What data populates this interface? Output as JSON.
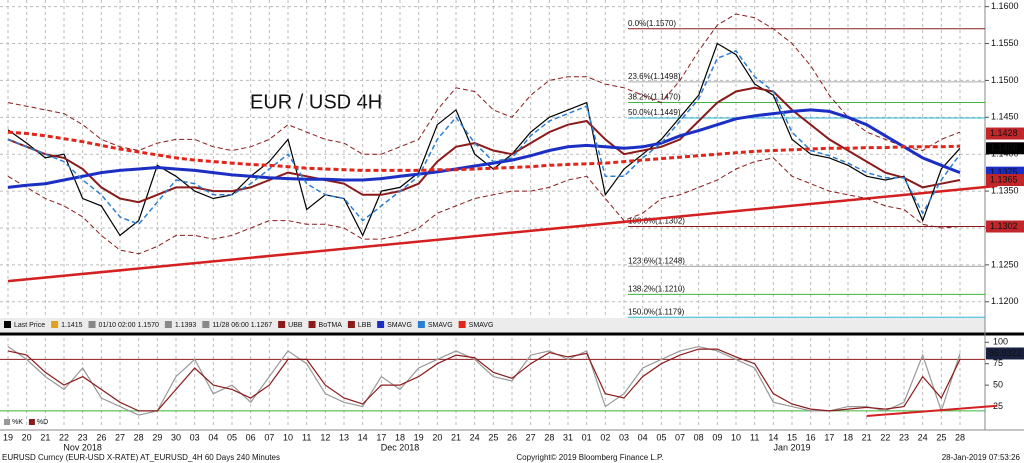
{
  "chart_data": [
    {
      "type": "line",
      "title": "EUR / USD 4H",
      "title_color": "#d42020",
      "categories": [
        "19",
        "20",
        "21",
        "22",
        "23",
        "26",
        "27",
        "28",
        "29",
        "30",
        "03",
        "04",
        "05",
        "06",
        "07",
        "10",
        "11",
        "12",
        "13",
        "14",
        "17",
        "18",
        "19",
        "20",
        "21",
        "24",
        "25",
        "26",
        "27",
        "28",
        "31",
        "01",
        "02",
        "03",
        "04",
        "05",
        "07",
        "08",
        "09",
        "10",
        "11",
        "14",
        "15",
        "16",
        "17",
        "18",
        "21",
        "22",
        "23",
        "24",
        "25",
        "28"
      ],
      "months": [
        "Nov 2018",
        "Dec 2018",
        "Jan 2019"
      ],
      "ylim": [
        1.1178,
        1.1609
      ],
      "yticks": [
        {
          "value": 1.12,
          "label": "1.1200"
        },
        {
          "value": 1.125,
          "label": "1.1250"
        },
        {
          "value": 1.13,
          "label": "1.1300"
        },
        {
          "value": 1.135,
          "label": "1.1350"
        },
        {
          "value": 1.14,
          "label": "1.1400"
        },
        {
          "value": 1.145,
          "label": "1.1450"
        },
        {
          "value": 1.15,
          "label": "1.1500"
        },
        {
          "value": 1.155,
          "label": "1.1550"
        },
        {
          "value": 1.16,
          "label": "1.1600"
        }
      ],
      "grid": true,
      "series": [
        {
          "name": "Last Price",
          "color": "#000000",
          "width": 1.2,
          "dash": false,
          "values": [
            1.1433,
            1.1415,
            1.1395,
            1.14,
            1.134,
            1.133,
            1.129,
            1.131,
            1.1385,
            1.137,
            1.135,
            1.134,
            1.1345,
            1.137,
            1.139,
            1.142,
            1.1325,
            1.1345,
            1.134,
            1.129,
            1.135,
            1.1355,
            1.1375,
            1.144,
            1.146,
            1.14,
            1.138,
            1.14,
            1.143,
            1.145,
            1.146,
            1.147,
            1.1345,
            1.138,
            1.14,
            1.142,
            1.145,
            1.148,
            1.155,
            1.1535,
            1.1495,
            1.148,
            1.142,
            1.14,
            1.1395,
            1.1385,
            1.137,
            1.1365,
            1.137,
            1.131,
            1.138,
            1.1408
          ]
        },
        {
          "name": "UBB",
          "color": "#8b1a1a",
          "width": 1,
          "dash": true,
          "values": [
            1.147,
            1.1465,
            1.146,
            1.1455,
            1.144,
            1.142,
            1.141,
            1.1405,
            1.1415,
            1.142,
            1.142,
            1.141,
            1.1405,
            1.141,
            1.142,
            1.144,
            1.143,
            1.142,
            1.1415,
            1.14,
            1.14,
            1.141,
            1.142,
            1.146,
            1.149,
            1.1485,
            1.146,
            1.145,
            1.148,
            1.15,
            1.1505,
            1.1505,
            1.1495,
            1.149,
            1.148,
            1.147,
            1.15,
            1.154,
            1.1575,
            1.159,
            1.1585,
            1.157,
            1.155,
            1.152,
            1.148,
            1.145,
            1.143,
            1.142,
            1.141,
            1.1405,
            1.142,
            1.143
          ]
        },
        {
          "name": "BoTMA",
          "color": "#8b1a1a",
          "width": 2,
          "dash": false,
          "values": [
            1.142,
            1.141,
            1.14,
            1.1395,
            1.138,
            1.1355,
            1.134,
            1.1335,
            1.1345,
            1.1355,
            1.1355,
            1.135,
            1.135,
            1.1355,
            1.1365,
            1.1375,
            1.137,
            1.1365,
            1.136,
            1.1345,
            1.1345,
            1.135,
            1.136,
            1.139,
            1.141,
            1.1415,
            1.1405,
            1.14,
            1.1415,
            1.143,
            1.144,
            1.1445,
            1.142,
            1.14,
            1.1405,
            1.141,
            1.142,
            1.1445,
            1.147,
            1.1485,
            1.149,
            1.1485,
            1.146,
            1.144,
            1.142,
            1.1405,
            1.139,
            1.1375,
            1.1368,
            1.1355,
            1.136,
            1.1365
          ]
        },
        {
          "name": "LBB",
          "color": "#8b1a1a",
          "width": 1,
          "dash": true,
          "values": [
            1.137,
            1.1355,
            1.134,
            1.133,
            1.1315,
            1.129,
            1.127,
            1.1265,
            1.1275,
            1.129,
            1.129,
            1.1285,
            1.129,
            1.13,
            1.131,
            1.131,
            1.1305,
            1.1305,
            1.13,
            1.1285,
            1.1285,
            1.129,
            1.13,
            1.132,
            1.133,
            1.134,
            1.1345,
            1.135,
            1.135,
            1.1355,
            1.1365,
            1.137,
            1.134,
            1.131,
            1.132,
            1.134,
            1.1345,
            1.1355,
            1.1365,
            1.138,
            1.139,
            1.1395,
            1.137,
            1.136,
            1.135,
            1.1345,
            1.134,
            1.133,
            1.1325,
            1.1305,
            1.13,
            1.1302
          ]
        },
        {
          "name": "SMAVG",
          "color": "#1c2fc4",
          "width": 3,
          "dash": false,
          "values": [
            1.1355,
            1.1358,
            1.136,
            1.1365,
            1.137,
            1.1375,
            1.1378,
            1.138,
            1.1382,
            1.138,
            1.1378,
            1.1375,
            1.1372,
            1.137,
            1.1368,
            1.1367,
            1.1366,
            1.1366,
            1.1365,
            1.1365,
            1.1367,
            1.137,
            1.1373,
            1.1376,
            1.138,
            1.1384,
            1.1388,
            1.1392,
            1.1398,
            1.1405,
            1.141,
            1.1412,
            1.141,
            1.1408,
            1.141,
            1.1415,
            1.1425,
            1.1432,
            1.144,
            1.1448,
            1.1452,
            1.1455,
            1.1458,
            1.146,
            1.1458,
            1.145,
            1.144,
            1.1425,
            1.141,
            1.1395,
            1.1385,
            1.1375
          ]
        },
        {
          "name": "SMAVG",
          "color": "#2a7fd4",
          "width": 1.5,
          "dash": true,
          "values": [
            1.142,
            1.141,
            1.14,
            1.139,
            1.1365,
            1.1345,
            1.1315,
            1.1305,
            1.1335,
            1.1365,
            1.136,
            1.1345,
            1.1345,
            1.136,
            1.138,
            1.14,
            1.136,
            1.1345,
            1.134,
            1.131,
            1.133,
            1.135,
            1.137,
            1.142,
            1.145,
            1.1415,
            1.139,
            1.1395,
            1.1425,
            1.1445,
            1.1455,
            1.1465,
            1.137,
            1.137,
            1.1395,
            1.1415,
            1.1445,
            1.1475,
            1.153,
            1.154,
            1.1505,
            1.1485,
            1.143,
            1.1405,
            1.1398,
            1.1388,
            1.1375,
            1.1368,
            1.1368,
            1.132,
            1.1365,
            1.14
          ]
        },
        {
          "name": "SMAVG",
          "color": "#e0261b",
          "width": 3,
          "dash": true,
          "values": [
            1.143,
            1.1428,
            1.1425,
            1.1421,
            1.1417,
            1.1412,
            1.1407,
            1.1403,
            1.1399,
            1.1395,
            1.1392,
            1.139,
            1.1388,
            1.1386,
            1.1385,
            1.1383,
            1.1381,
            1.138,
            1.1379,
            1.1378,
            1.1378,
            1.1378,
            1.1378,
            1.1379,
            1.1379,
            1.138,
            1.1381,
            1.1382,
            1.1383,
            1.1385,
            1.1386,
            1.1387,
            1.1388,
            1.139,
            1.1392,
            1.1394,
            1.1396,
            1.1398,
            1.14,
            1.1402,
            1.1404,
            1.1405,
            1.1406,
            1.1407,
            1.1408,
            1.1408,
            1.1409,
            1.1409,
            1.141,
            1.141,
            1.141,
            1.1411
          ]
        }
      ],
      "legend_info": [
        {
          "text": "1.1415",
          "color": "#e0a020"
        },
        {
          "text": "01/10 02:00 1.1570",
          "color": "#888888"
        },
        {
          "text": "1.1393",
          "color": "#888888"
        },
        {
          "text": "11/28 06:00 1.1267",
          "color": "#888888"
        }
      ],
      "fib_levels": [
        {
          "value": 1.157,
          "label": "0.0%(1.1570)",
          "color": "#8b1a1a"
        },
        {
          "value": 1.1498,
          "label": "23.6%(1.1498)",
          "color": "#aaaaaa"
        },
        {
          "value": 1.147,
          "label": "38.2%(1.1470)",
          "color": "#3fb53f"
        },
        {
          "value": 1.1449,
          "label": "50.0%(1.1449)",
          "color": "#2bb5d0"
        },
        {
          "value": 1.1302,
          "label": "100.0%(1.1302)",
          "color": "#8b1a1a"
        },
        {
          "value": 1.1248,
          "label": "123.6%(1.1248)",
          "color": "#aaaaaa"
        },
        {
          "value": 1.121,
          "label": "138.2%(1.1210)",
          "color": "#3fb53f"
        },
        {
          "value": 1.1179,
          "label": "150.0%(1.1179)",
          "color": "#2bb5d0"
        }
      ],
      "trendline": {
        "color": "#d42020",
        "from": [
          0,
          1.1228
        ],
        "to": [
          53,
          1.1357
        ]
      },
      "price_tags": [
        {
          "value": 1.1428,
          "color": "#c0262a"
        },
        {
          "value": 1.1408,
          "color": "#000000"
        },
        {
          "value": 1.1375,
          "color": "#1c2fc4"
        },
        {
          "value": 1.1365,
          "color": "#c0262a"
        },
        {
          "value": 1.1302,
          "color": "#c0262a"
        }
      ]
    },
    {
      "type": "line",
      "ylim": [
        0,
        105
      ],
      "yticks": [
        25,
        50,
        75,
        100
      ],
      "series": [
        {
          "name": "%K",
          "color": "#999999",
          "width": 1.2,
          "dash": false,
          "values": [
            95,
            80,
            60,
            45,
            70,
            35,
            25,
            15,
            20,
            60,
            80,
            40,
            50,
            30,
            60,
            90,
            75,
            40,
            30,
            25,
            60,
            45,
            70,
            80,
            90,
            80,
            60,
            55,
            85,
            90,
            80,
            90,
            25,
            40,
            70,
            80,
            90,
            95,
            90,
            80,
            70,
            30,
            25,
            20,
            20,
            25,
            25,
            20,
            30,
            85,
            20,
            87
          ]
        },
        {
          "name": "%D",
          "color": "#8b1a1a",
          "width": 1.2,
          "dash": false,
          "values": [
            90,
            85,
            65,
            50,
            60,
            45,
            30,
            20,
            20,
            45,
            70,
            50,
            45,
            35,
            50,
            80,
            80,
            50,
            35,
            28,
            50,
            50,
            60,
            75,
            85,
            82,
            65,
            58,
            75,
            88,
            83,
            87,
            40,
            35,
            60,
            75,
            85,
            92,
            92,
            83,
            75,
            40,
            28,
            22,
            20,
            22,
            24,
            22,
            25,
            60,
            35,
            80
          ]
        }
      ],
      "levels": [
        {
          "value": 80,
          "color": "#8b1a1a"
        },
        {
          "value": 20,
          "color": "#3fb53f"
        }
      ],
      "last_value": 86.9322,
      "trendline": {
        "color": "#d42020",
        "from": [
          46,
          14
        ],
        "to": [
          53,
          26
        ]
      }
    }
  ],
  "footer": {
    "left": "EURUSD Curncy (EUR-USD X-RATE) AT_EURUSD_4H 60 Days 240 Minutes",
    "center": "Copyright© 2019 Bloomberg Finance L.P.",
    "right": "28-Jan-2019 07:53:26"
  }
}
